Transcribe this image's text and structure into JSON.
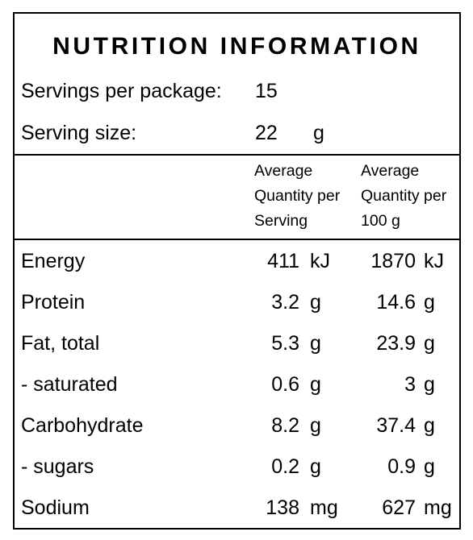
{
  "title": "NUTRITION INFORMATION",
  "servings": {
    "label": "Servings per package:",
    "value": "15"
  },
  "serving_size": {
    "label": "Serving size:",
    "value": "22",
    "unit": "g"
  },
  "columns": {
    "per_serving": [
      "Average",
      "Quantity per",
      "Serving"
    ],
    "per_100g": [
      "Average",
      "Quantity per",
      "100 g"
    ]
  },
  "rows": [
    {
      "name": "Energy",
      "serving": "411",
      "serving_unit": "kJ",
      "per100": "1870",
      "per100_unit": "kJ"
    },
    {
      "name": "Protein",
      "serving": "3.2",
      "serving_unit": "g",
      "per100": "14.6",
      "per100_unit": "g"
    },
    {
      "name": "Fat, total",
      "serving": "5.3",
      "serving_unit": "g",
      "per100": "23.9",
      "per100_unit": "g"
    },
    {
      "name": "- saturated",
      "serving": "0.6",
      "serving_unit": "g",
      "per100": "3",
      "per100_unit": "g"
    },
    {
      "name": "Carbohydrate",
      "serving": "8.2",
      "serving_unit": "g",
      "per100": "37.4",
      "per100_unit": "g"
    },
    {
      "name": "- sugars",
      "serving": "0.2",
      "serving_unit": "g",
      "per100": "0.9",
      "per100_unit": "g"
    },
    {
      "name": "Sodium",
      "serving": "138",
      "serving_unit": "mg",
      "per100": "627",
      "per100_unit": "mg"
    }
  ]
}
